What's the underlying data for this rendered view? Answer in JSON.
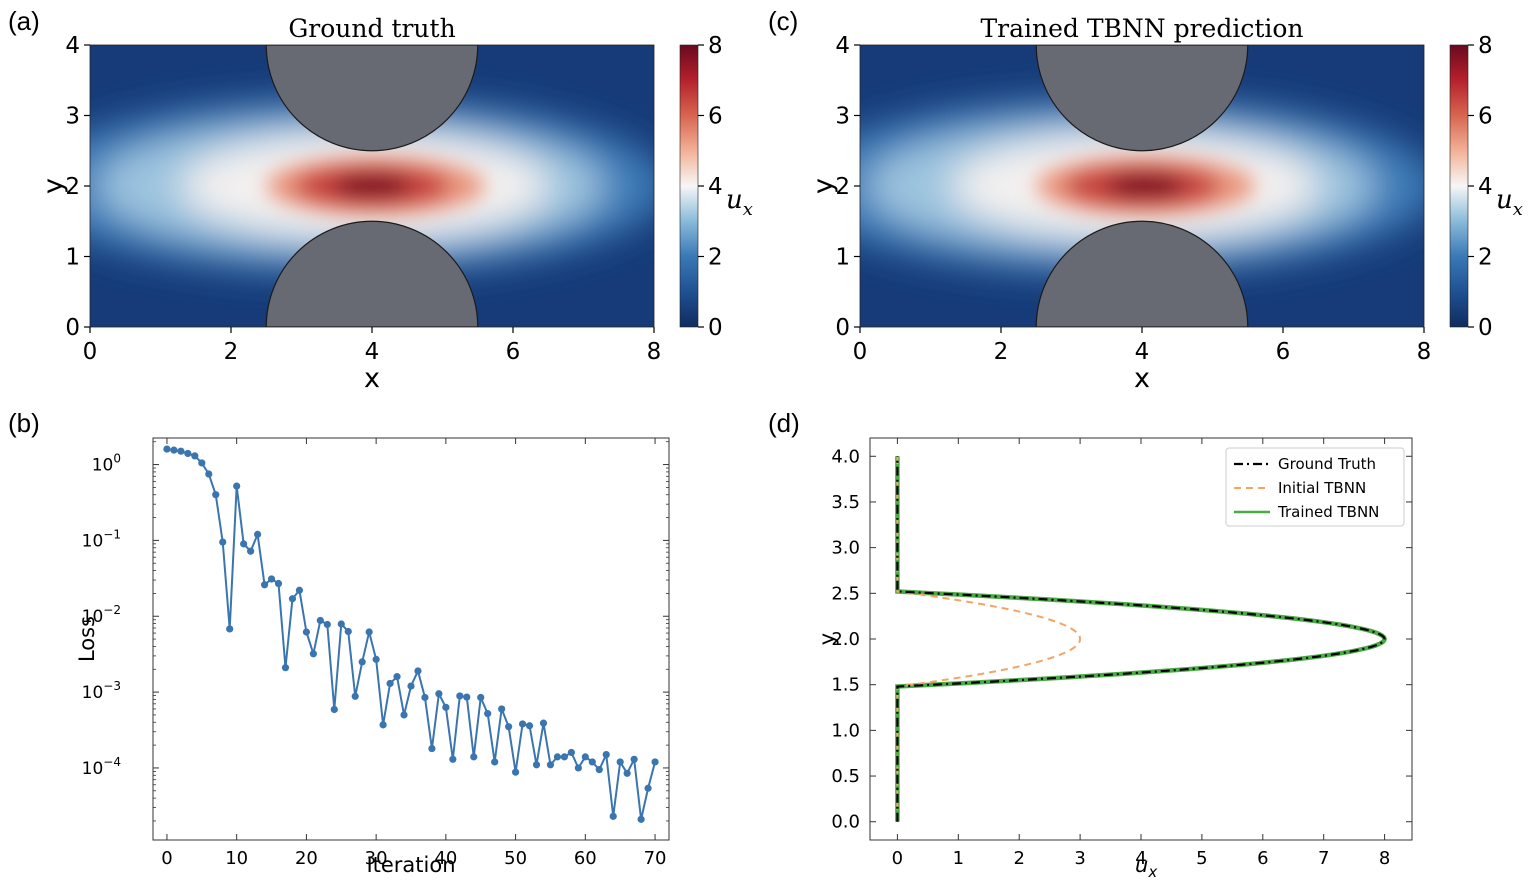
{
  "panels": {
    "a": {
      "label": "(a)",
      "title": "Ground truth"
    },
    "c": {
      "label": "(c)",
      "title": "Trained TBNN prediction"
    },
    "b": {
      "label": "(b)"
    },
    "d": {
      "label": "(d)"
    }
  },
  "chart_data": [
    {
      "id": "a",
      "type": "heatmap",
      "title": "Ground truth",
      "xlabel": "x",
      "ylabel": "y",
      "xlim": [
        0,
        8
      ],
      "ylim": [
        0,
        4
      ],
      "xticks": [
        "0",
        "2",
        "4",
        "6",
        "8"
      ],
      "yticks": [
        "0",
        "1",
        "2",
        "3",
        "4"
      ],
      "colorbar": {
        "label": "u_x",
        "range": [
          0,
          8
        ],
        "ticks": [
          "0",
          "2",
          "4",
          "6",
          "8"
        ]
      },
      "jet_peak_value": 8,
      "jet_center": [
        4,
        2
      ],
      "obstacles": [
        {
          "shape": "semicircle",
          "center": [
            4,
            4
          ],
          "radius": 1.5,
          "fill": "#676a72"
        },
        {
          "shape": "semicircle",
          "center": [
            4,
            0
          ],
          "radius": 1.5,
          "fill": "#676a72"
        }
      ]
    },
    {
      "id": "c",
      "type": "heatmap",
      "title": "Trained TBNN prediction",
      "xlabel": "x",
      "ylabel": "y",
      "xlim": [
        0,
        8
      ],
      "ylim": [
        0,
        4
      ],
      "xticks": [
        "0",
        "2",
        "4",
        "6",
        "8"
      ],
      "yticks": [
        "0",
        "1",
        "2",
        "3",
        "4"
      ],
      "colorbar": {
        "label": "u_x",
        "range": [
          0,
          8
        ],
        "ticks": [
          "0",
          "2",
          "4",
          "6",
          "8"
        ]
      },
      "jet_peak_value": 8,
      "jet_center": [
        4,
        2
      ],
      "obstacles": [
        {
          "shape": "semicircle",
          "center": [
            4,
            4
          ],
          "radius": 1.5,
          "fill": "#676a72"
        },
        {
          "shape": "semicircle",
          "center": [
            4,
            0
          ],
          "radius": 1.5,
          "fill": "#676a72"
        }
      ]
    },
    {
      "id": "b",
      "type": "line",
      "yscale": "log",
      "xlabel": "Iteration",
      "ylabel": "Loss",
      "xlim": [
        -2,
        72
      ],
      "ylim_log10": [
        -4.95,
        0.35
      ],
      "xticks": [
        "0",
        "10",
        "20",
        "30",
        "40",
        "50",
        "60",
        "70"
      ],
      "yticks": [
        {
          "base": "10",
          "exp": "0"
        },
        {
          "base": "10",
          "exp": "−1"
        },
        {
          "base": "10",
          "exp": "−2"
        },
        {
          "base": "10",
          "exp": "−3"
        },
        {
          "base": "10",
          "exp": "−4"
        }
      ],
      "color": "#3a75b0",
      "x": [
        0,
        1,
        2,
        3,
        4,
        5,
        6,
        7,
        8,
        9,
        10,
        11,
        12,
        13,
        14,
        15,
        16,
        17,
        18,
        19,
        20,
        21,
        22,
        23,
        24,
        25,
        26,
        27,
        28,
        29,
        30,
        31,
        32,
        33,
        34,
        35,
        36,
        37,
        38,
        39,
        40,
        41,
        42,
        43,
        44,
        45,
        46,
        47,
        48,
        49,
        50,
        51,
        52,
        53,
        54,
        55,
        56,
        57,
        58,
        59,
        60,
        61,
        62,
        63,
        64,
        65,
        66,
        67,
        68,
        69,
        70
      ],
      "values": [
        1.6,
        1.55,
        1.5,
        1.4,
        1.3,
        1.05,
        0.75,
        0.4,
        0.095,
        0.0068,
        0.52,
        0.09,
        0.072,
        0.12,
        0.026,
        0.031,
        0.027,
        0.0021,
        0.017,
        0.022,
        0.0062,
        0.0032,
        0.0088,
        0.0078,
        0.00059,
        0.0079,
        0.0063,
        0.00088,
        0.0025,
        0.0062,
        0.0027,
        0.00037,
        0.0013,
        0.0016,
        0.0005,
        0.0012,
        0.0019,
        0.00085,
        0.00018,
        0.00095,
        0.00063,
        0.00013,
        0.00089,
        0.00086,
        0.00014,
        0.00085,
        0.00052,
        0.00012,
        0.0006,
        0.00035,
        8.8e-05,
        0.00038,
        0.00036,
        0.00011,
        0.00039,
        0.00011,
        0.00014,
        0.00014,
        0.00016,
        0.0001,
        0.00014,
        0.00012,
        9.5e-05,
        0.00015,
        2.3e-05,
        0.00012,
        8.5e-05,
        0.00013,
        2.1e-05,
        5.4e-05,
        0.00012
      ]
    },
    {
      "id": "d",
      "type": "line",
      "xlabel": "u_x",
      "ylabel": "y",
      "xlim": [
        -0.45,
        8.45
      ],
      "ylim": [
        -0.2,
        4.2
      ],
      "xticks": [
        "0",
        "1",
        "2",
        "3",
        "4",
        "5",
        "6",
        "7",
        "8"
      ],
      "yticks": [
        "0.0",
        "0.5",
        "1.0",
        "1.5",
        "2.0",
        "2.5",
        "3.0",
        "3.5",
        "4.0"
      ],
      "legend_position": "top-right",
      "series": [
        {
          "name": "Ground Truth",
          "color": "#000000",
          "style": "dash-dot",
          "peak": 8,
          "y_range": [
            1.48,
            2.52
          ]
        },
        {
          "name": "Initial TBNN",
          "color": "#f4a566",
          "style": "dashed",
          "peak": 3,
          "y_range": [
            1.48,
            2.52
          ]
        },
        {
          "name": "Trained TBNN",
          "color": "#4aab44",
          "style": "solid",
          "peak": 8,
          "y_range": [
            1.48,
            2.52
          ]
        }
      ]
    }
  ]
}
